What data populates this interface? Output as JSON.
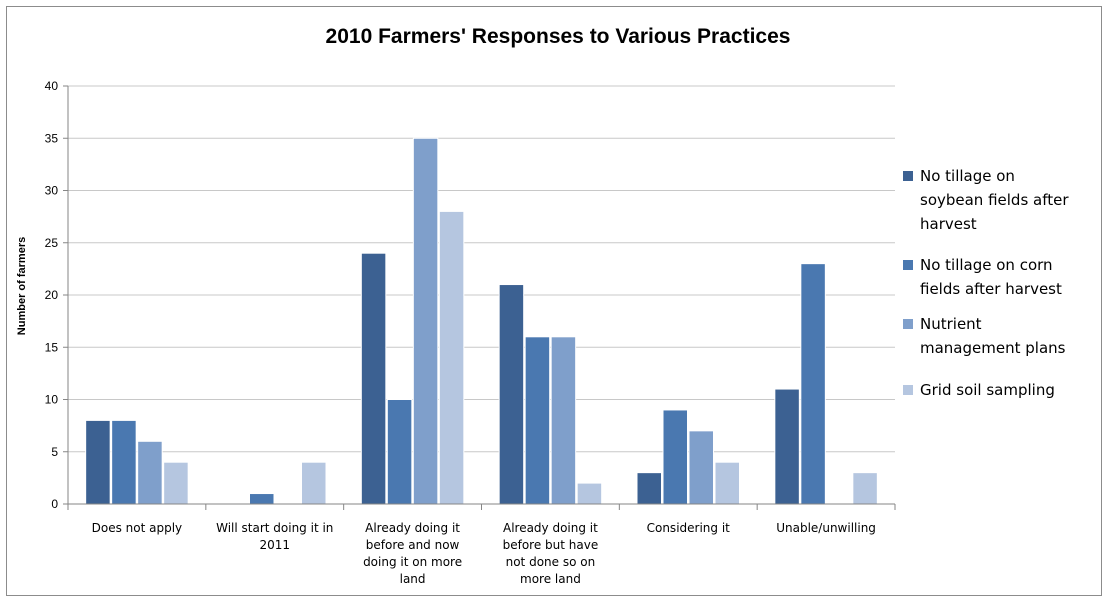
{
  "chart_data": {
    "type": "bar",
    "title": "2010 Farmers' Responses to Various Practices",
    "ylabel": "Number of farmers",
    "xlabel": "",
    "ylim": [
      0,
      40
    ],
    "yticks": [
      0,
      5,
      10,
      15,
      20,
      25,
      30,
      35,
      40
    ],
    "grid": true,
    "legend_position": "right",
    "categories": [
      [
        "Does not apply"
      ],
      [
        "Will start doing it in",
        "2011"
      ],
      [
        "Already doing it",
        "before and now",
        "doing it on more",
        "land"
      ],
      [
        "Already doing it",
        "before but have",
        "not done so on",
        "more land"
      ],
      [
        "Considering it"
      ],
      [
        "Unable/unwilling"
      ]
    ],
    "series": [
      {
        "name": [
          "No tillage on",
          "soybean fields after",
          "harvest"
        ],
        "color": "#3c6192",
        "values": [
          8,
          0,
          24,
          21,
          3,
          11
        ]
      },
      {
        "name": [
          "No tillage on corn",
          "fields after harvest"
        ],
        "color": "#4a78b0",
        "values": [
          8,
          1,
          10,
          16,
          9,
          23
        ]
      },
      {
        "name": [
          "Nutrient",
          "management plans"
        ],
        "color": "#7f9fcb",
        "values": [
          6,
          0,
          35,
          16,
          7,
          0
        ]
      },
      {
        "name": [
          "Grid soil sampling"
        ],
        "color": "#b5c6e0",
        "values": [
          4,
          4,
          28,
          2,
          4,
          3
        ]
      }
    ]
  }
}
